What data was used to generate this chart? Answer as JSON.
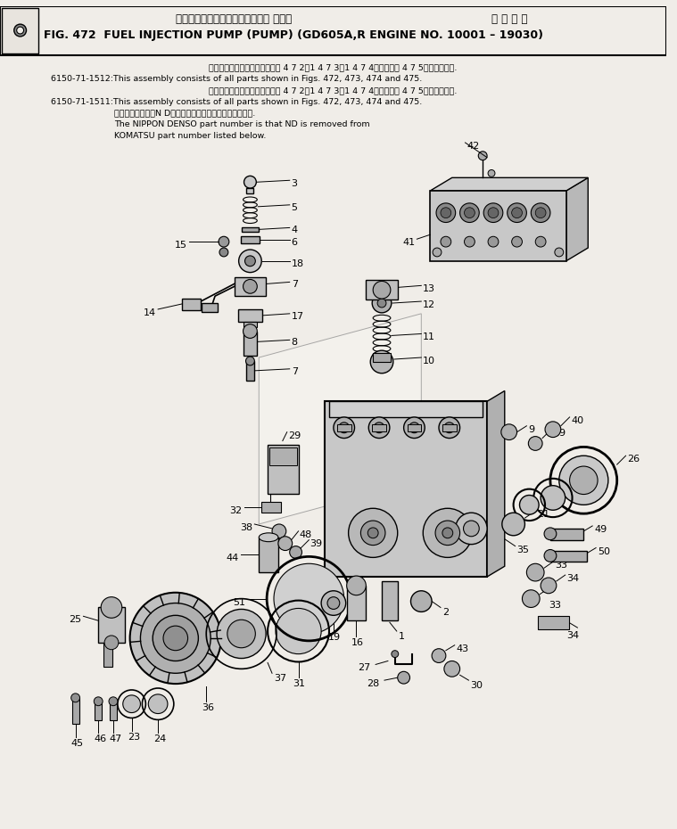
{
  "title_jp": "フェエルインジェクションポンプ ポンプ",
  "title_jp2": "適 用 号 機",
  "title_en": "FIG. 472  FUEL INJECTION PUMP (PUMP) (GD605A,R ENGINE NO. 10001 – 19030)",
  "note1_jp": "このアセンブリの構成部品は図 4 7 2、1 4 7 3、1 4 7 4図および図 4 7 5図を含みます.",
  "note1_en": "6150-71-1512:This assembly consists of all parts shown in Figs. 472, 473, 474 and 475.",
  "note2_jp": "このアセンブリの構成部品は図 4 7 2、1 4 7 3、1 4 7 4図および図 4 7 5図を含みます.",
  "note2_en": "6150-71-1511:This assembly consists of all parts shown in Figs. 472, 473, 474 and 475.",
  "note3_jp": "品番のメーカ記号N Dを取ったものが日本電装の品番です.",
  "note3_en1": "The NIPPON DENSO part number is that ND is removed from",
  "note3_en2": "KOMATSU part number listed below.",
  "bg_color": "#f0ede8",
  "text_color": "#000000"
}
